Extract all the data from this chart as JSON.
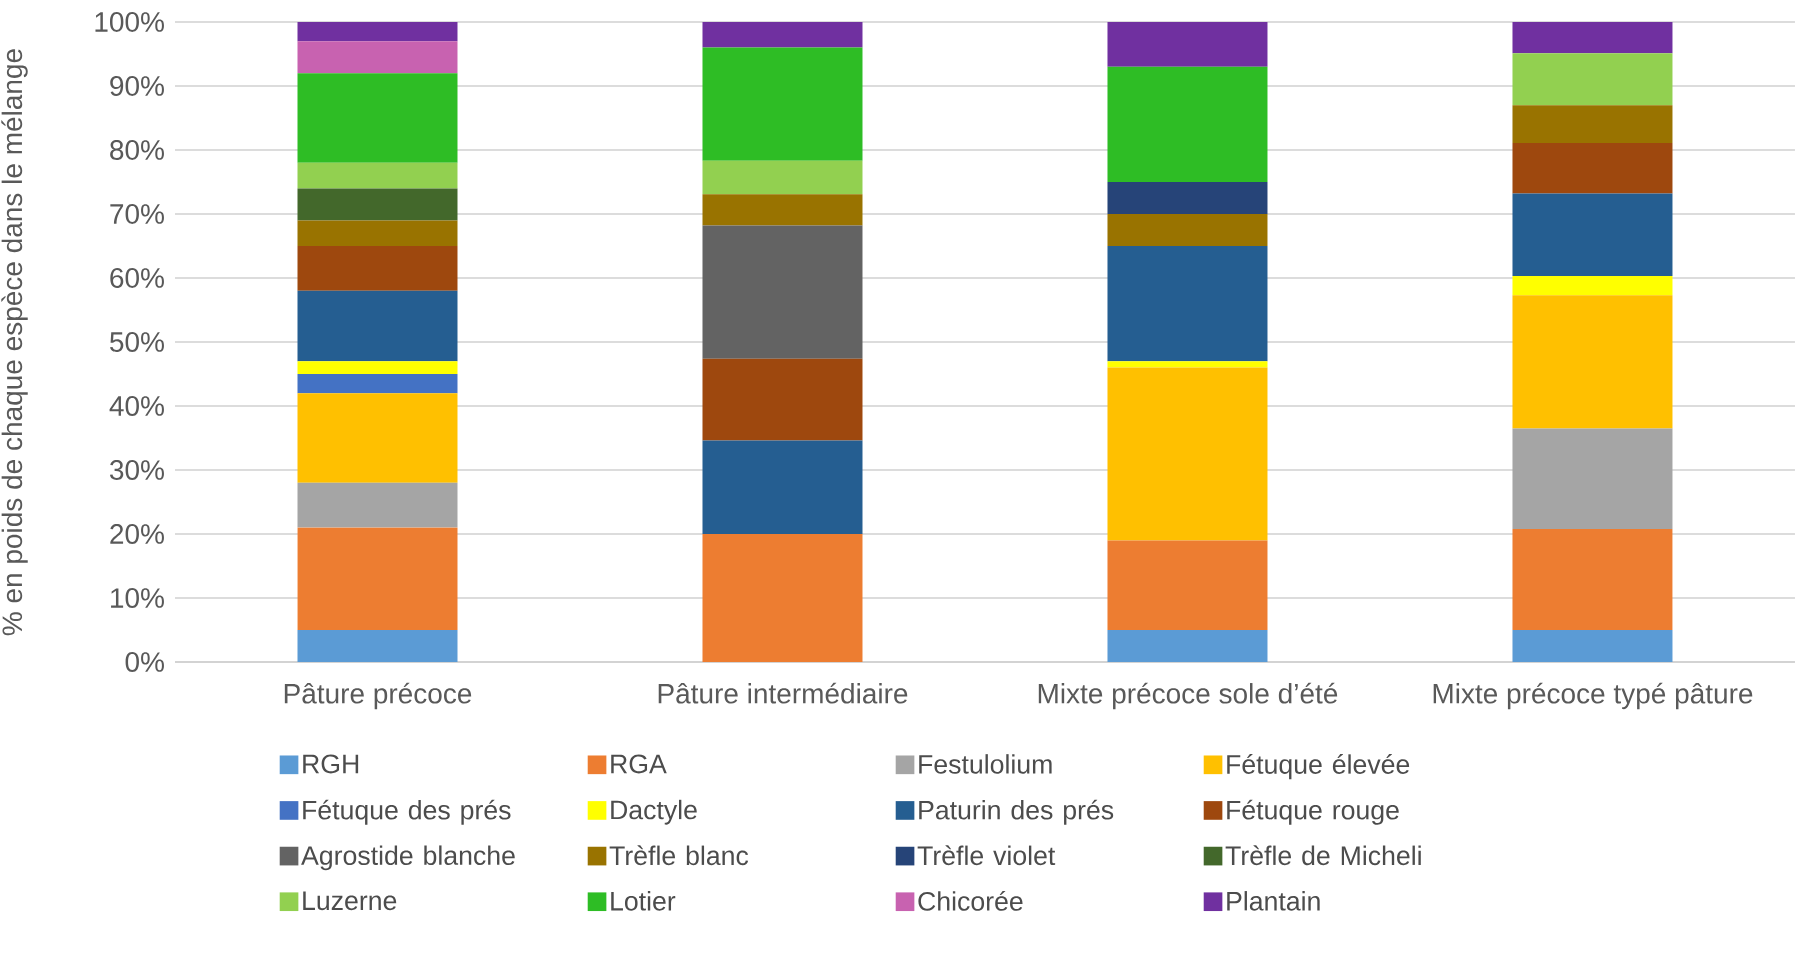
{
  "chart_data": {
    "type": "bar",
    "stacked": true,
    "ylabel": "% en poids de chaque espèce dans le mélange",
    "categories": [
      "Pâture précoce",
      "Pâture intermédiaire",
      "Mixte précoce sole d’été",
      "Mixte précoce typé pâture"
    ],
    "ylim": [
      0,
      100
    ],
    "yticks": [
      {
        "value": 0,
        "label": "0%"
      },
      {
        "value": 10,
        "label": "10%"
      },
      {
        "value": 20,
        "label": "20%"
      },
      {
        "value": 30,
        "label": "30%"
      },
      {
        "value": 40,
        "label": "40%"
      },
      {
        "value": 50,
        "label": "50%"
      },
      {
        "value": 60,
        "label": "60%"
      },
      {
        "value": 70,
        "label": "70%"
      },
      {
        "value": 80,
        "label": "80%"
      },
      {
        "value": 90,
        "label": "90%"
      },
      {
        "value": 100,
        "label": "100%"
      }
    ],
    "grid": "y",
    "legend": "bottom",
    "series": [
      {
        "name": "RGH",
        "color": "#5b9bd5",
        "values": [
          5,
          0,
          5,
          5
        ]
      },
      {
        "name": "RGA",
        "color": "#ed7d31",
        "values": [
          16,
          20,
          14,
          15.8
        ]
      },
      {
        "name": "Festulolium",
        "color": "#a5a5a5",
        "values": [
          7,
          0,
          0,
          15.7
        ]
      },
      {
        "name": "Fétuque élevée",
        "color": "#ffc000",
        "values": [
          14,
          0,
          27,
          20.8
        ]
      },
      {
        "name": "Fétuque des prés",
        "color": "#4472c4",
        "values": [
          3,
          0,
          0,
          0
        ]
      },
      {
        "name": "Dactyle",
        "color": "#ffff00",
        "values": [
          2,
          0,
          1,
          3
        ]
      },
      {
        "name": "Paturin des prés",
        "color": "#255e91",
        "values": [
          11,
          14.6,
          18,
          12.9
        ]
      },
      {
        "name": "Fétuque rouge",
        "color": "#9e480e",
        "values": [
          7,
          12.8,
          0,
          7.9
        ]
      },
      {
        "name": "Agrostide blanche",
        "color": "#636363",
        "values": [
          0,
          20.8,
          0,
          0
        ]
      },
      {
        "name": "Trèfle blanc",
        "color": "#997300",
        "values": [
          4,
          4.9,
          5,
          5.9
        ]
      },
      {
        "name": "Trèfle violet",
        "color": "#264478",
        "values": [
          0,
          0,
          5,
          0
        ]
      },
      {
        "name": "Trèfle de Micheli",
        "color": "#43682b",
        "values": [
          5,
          0,
          0,
          0
        ]
      },
      {
        "name": "Luzerne",
        "color": "#92d050",
        "values": [
          4,
          5.2,
          0,
          8.1
        ]
      },
      {
        "name": "Lotier",
        "color": "#2ebd25",
        "values": [
          14,
          17.7,
          18,
          0
        ]
      },
      {
        "name": "Chicorée",
        "color": "#c862b0",
        "values": [
          5,
          0,
          0,
          0
        ]
      },
      {
        "name": "Plantain",
        "color": "#7030a0",
        "values": [
          3,
          4,
          7,
          4.9
        ]
      }
    ]
  }
}
